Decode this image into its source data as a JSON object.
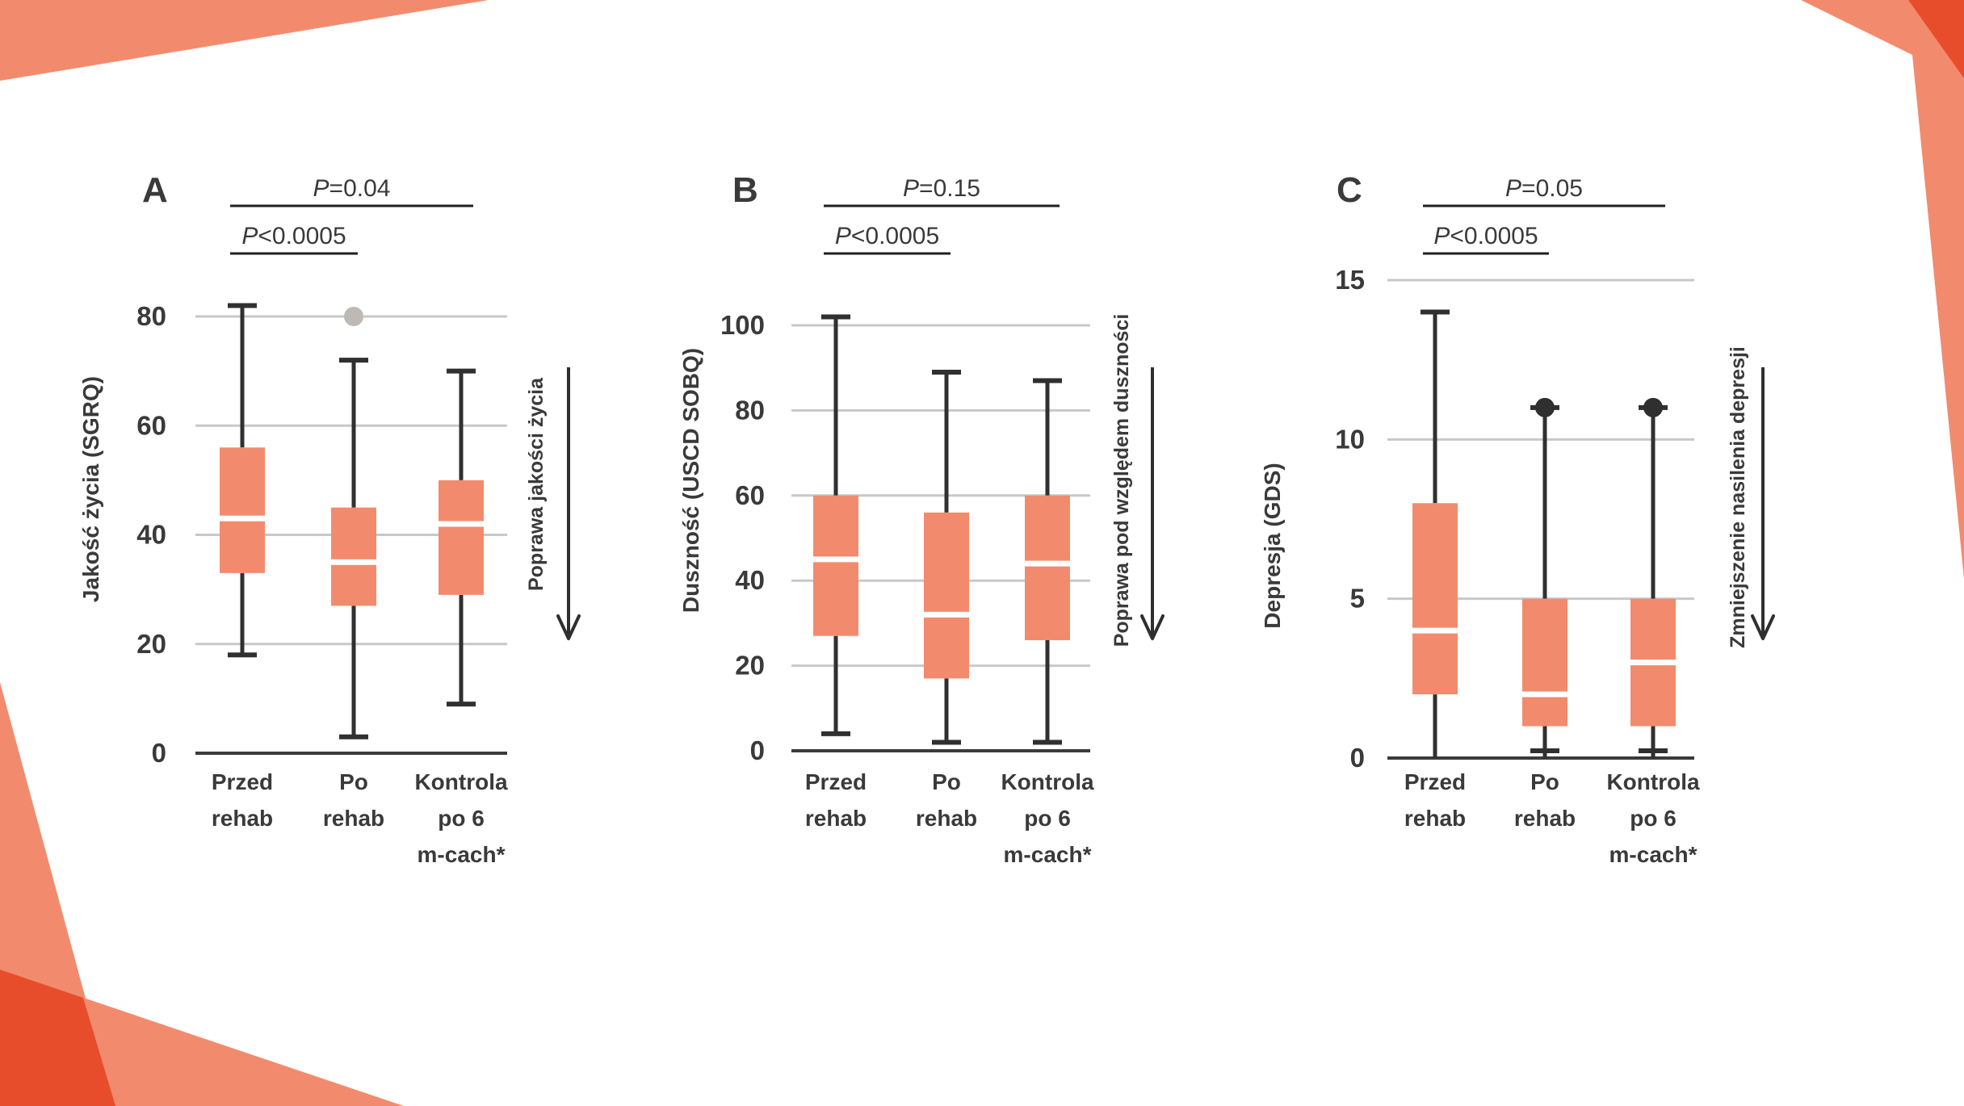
{
  "figure": {
    "background": "#ffffff",
    "description_visible_text_only": true
  },
  "colors": {
    "box_fill": "#F28B6D",
    "decoration_salmon": "#F28B6D",
    "decoration_dark_orange": "#E84D2B",
    "ink": "#3A3A3A",
    "whisker": "#303030",
    "gridline": "#C8C8C8",
    "axis_line": "#3B3B3B",
    "median_line": "#FFFFFF",
    "outlier_gray": "#BDBAB5",
    "outlier_black": "#2F2F2F",
    "bracket_line": "#1F1F1F"
  },
  "chart_data": [
    {
      "type": "box",
      "panel_letter": "A",
      "ylabel": "Jakość życia (SGRQ)",
      "ylim": [
        0,
        80
      ],
      "yticks": [
        0,
        20,
        40,
        60,
        80
      ],
      "grid": true,
      "categories": [
        "Przed rehab",
        "Po rehab",
        "Kontrola po 6 m-cach*"
      ],
      "category_lines": [
        [
          "Przed",
          "rehab"
        ],
        [
          "Po",
          "rehab"
        ],
        [
          "Kontrola",
          "po 6",
          "m-cach*"
        ]
      ],
      "significance": [
        {
          "label": "P=0.04",
          "from": 0,
          "to": 2
        },
        {
          "label": "P<0.0005",
          "from": 0,
          "to": 1
        }
      ],
      "arrow_label": "Poprawa jakości życia",
      "boxes": [
        {
          "category": "Przed rehab",
          "min": 18,
          "q1": 33,
          "median": 43,
          "q3": 56,
          "max": 82,
          "min_cap": true,
          "outlier": null,
          "outlier_style": null
        },
        {
          "category": "Po rehab",
          "min": 3,
          "q1": 27,
          "median": 35,
          "q3": 45,
          "max": 72,
          "min_cap": true,
          "outlier": 80,
          "outlier_style": "gray"
        },
        {
          "category": "Kontrola po 6 m-cach*",
          "min": 9,
          "q1": 29,
          "median": 42,
          "q3": 50,
          "max": 70,
          "min_cap": true,
          "outlier": null,
          "outlier_style": null
        }
      ]
    },
    {
      "type": "box",
      "panel_letter": "B",
      "ylabel": "Duszność (USCD SOBQ)",
      "ylim": [
        0,
        100
      ],
      "yticks": [
        0,
        20,
        40,
        60,
        80,
        100
      ],
      "grid": true,
      "categories": [
        "Przed rehab",
        "Po rehab",
        "Kontrola po 6 m-cach*"
      ],
      "category_lines": [
        [
          "Przed",
          "rehab"
        ],
        [
          "Po",
          "rehab"
        ],
        [
          "Kontrola",
          "po 6",
          "m-cach*"
        ]
      ],
      "significance": [
        {
          "label": "P=0.15",
          "from": 0,
          "to": 2
        },
        {
          "label": "P<0.0005",
          "from": 0,
          "to": 1
        }
      ],
      "arrow_label": "Poprawa pod względem duszności",
      "boxes": [
        {
          "category": "Przed rehab",
          "min": 4,
          "q1": 27,
          "median": 45,
          "q3": 60,
          "max": 102,
          "min_cap": true,
          "outlier": null,
          "outlier_style": null
        },
        {
          "category": "Po rehab",
          "min": 2,
          "q1": 17,
          "median": 32,
          "q3": 56,
          "max": 89,
          "min_cap": true,
          "outlier": null,
          "outlier_style": null
        },
        {
          "category": "Kontrola po 6 m-cach*",
          "min": 2,
          "q1": 26,
          "median": 44,
          "q3": 60,
          "max": 87,
          "min_cap": true,
          "outlier": null,
          "outlier_style": null
        }
      ]
    },
    {
      "type": "box",
      "panel_letter": "C",
      "ylabel": "Depresja (GDS)",
      "ylim": [
        0,
        15
      ],
      "yticks": [
        0,
        5,
        10,
        15
      ],
      "grid": true,
      "categories": [
        "Przed rehab",
        "Po rehab",
        "Kontrola po 6 m-cach*"
      ],
      "category_lines": [
        [
          "Przed",
          "rehab"
        ],
        [
          "Po",
          "rehab"
        ],
        [
          "Kontrola",
          "po 6",
          "m-cach*"
        ]
      ],
      "significance": [
        {
          "label": "P=0.05",
          "from": 0,
          "to": 2
        },
        {
          "label": "P<0.0005",
          "from": 0,
          "to": 1
        }
      ],
      "arrow_label": "Zmniejszenie nasilenia depresji",
      "boxes": [
        {
          "category": "Przed rehab",
          "min": 0,
          "q1": 2,
          "median": 4,
          "q3": 8,
          "max": 14,
          "min_cap": false,
          "outlier": null,
          "outlier_style": null
        },
        {
          "category": "Po rehab",
          "min": 0,
          "q1": 1,
          "median": 2,
          "q3": 5,
          "max": 11,
          "min_cap": true,
          "outlier": 11,
          "outlier_style": "black"
        },
        {
          "category": "Kontrola po 6 m-cach*",
          "min": 0,
          "q1": 1,
          "median": 3,
          "q3": 5,
          "max": 11,
          "min_cap": true,
          "outlier": 11,
          "outlier_style": "black"
        }
      ]
    }
  ]
}
